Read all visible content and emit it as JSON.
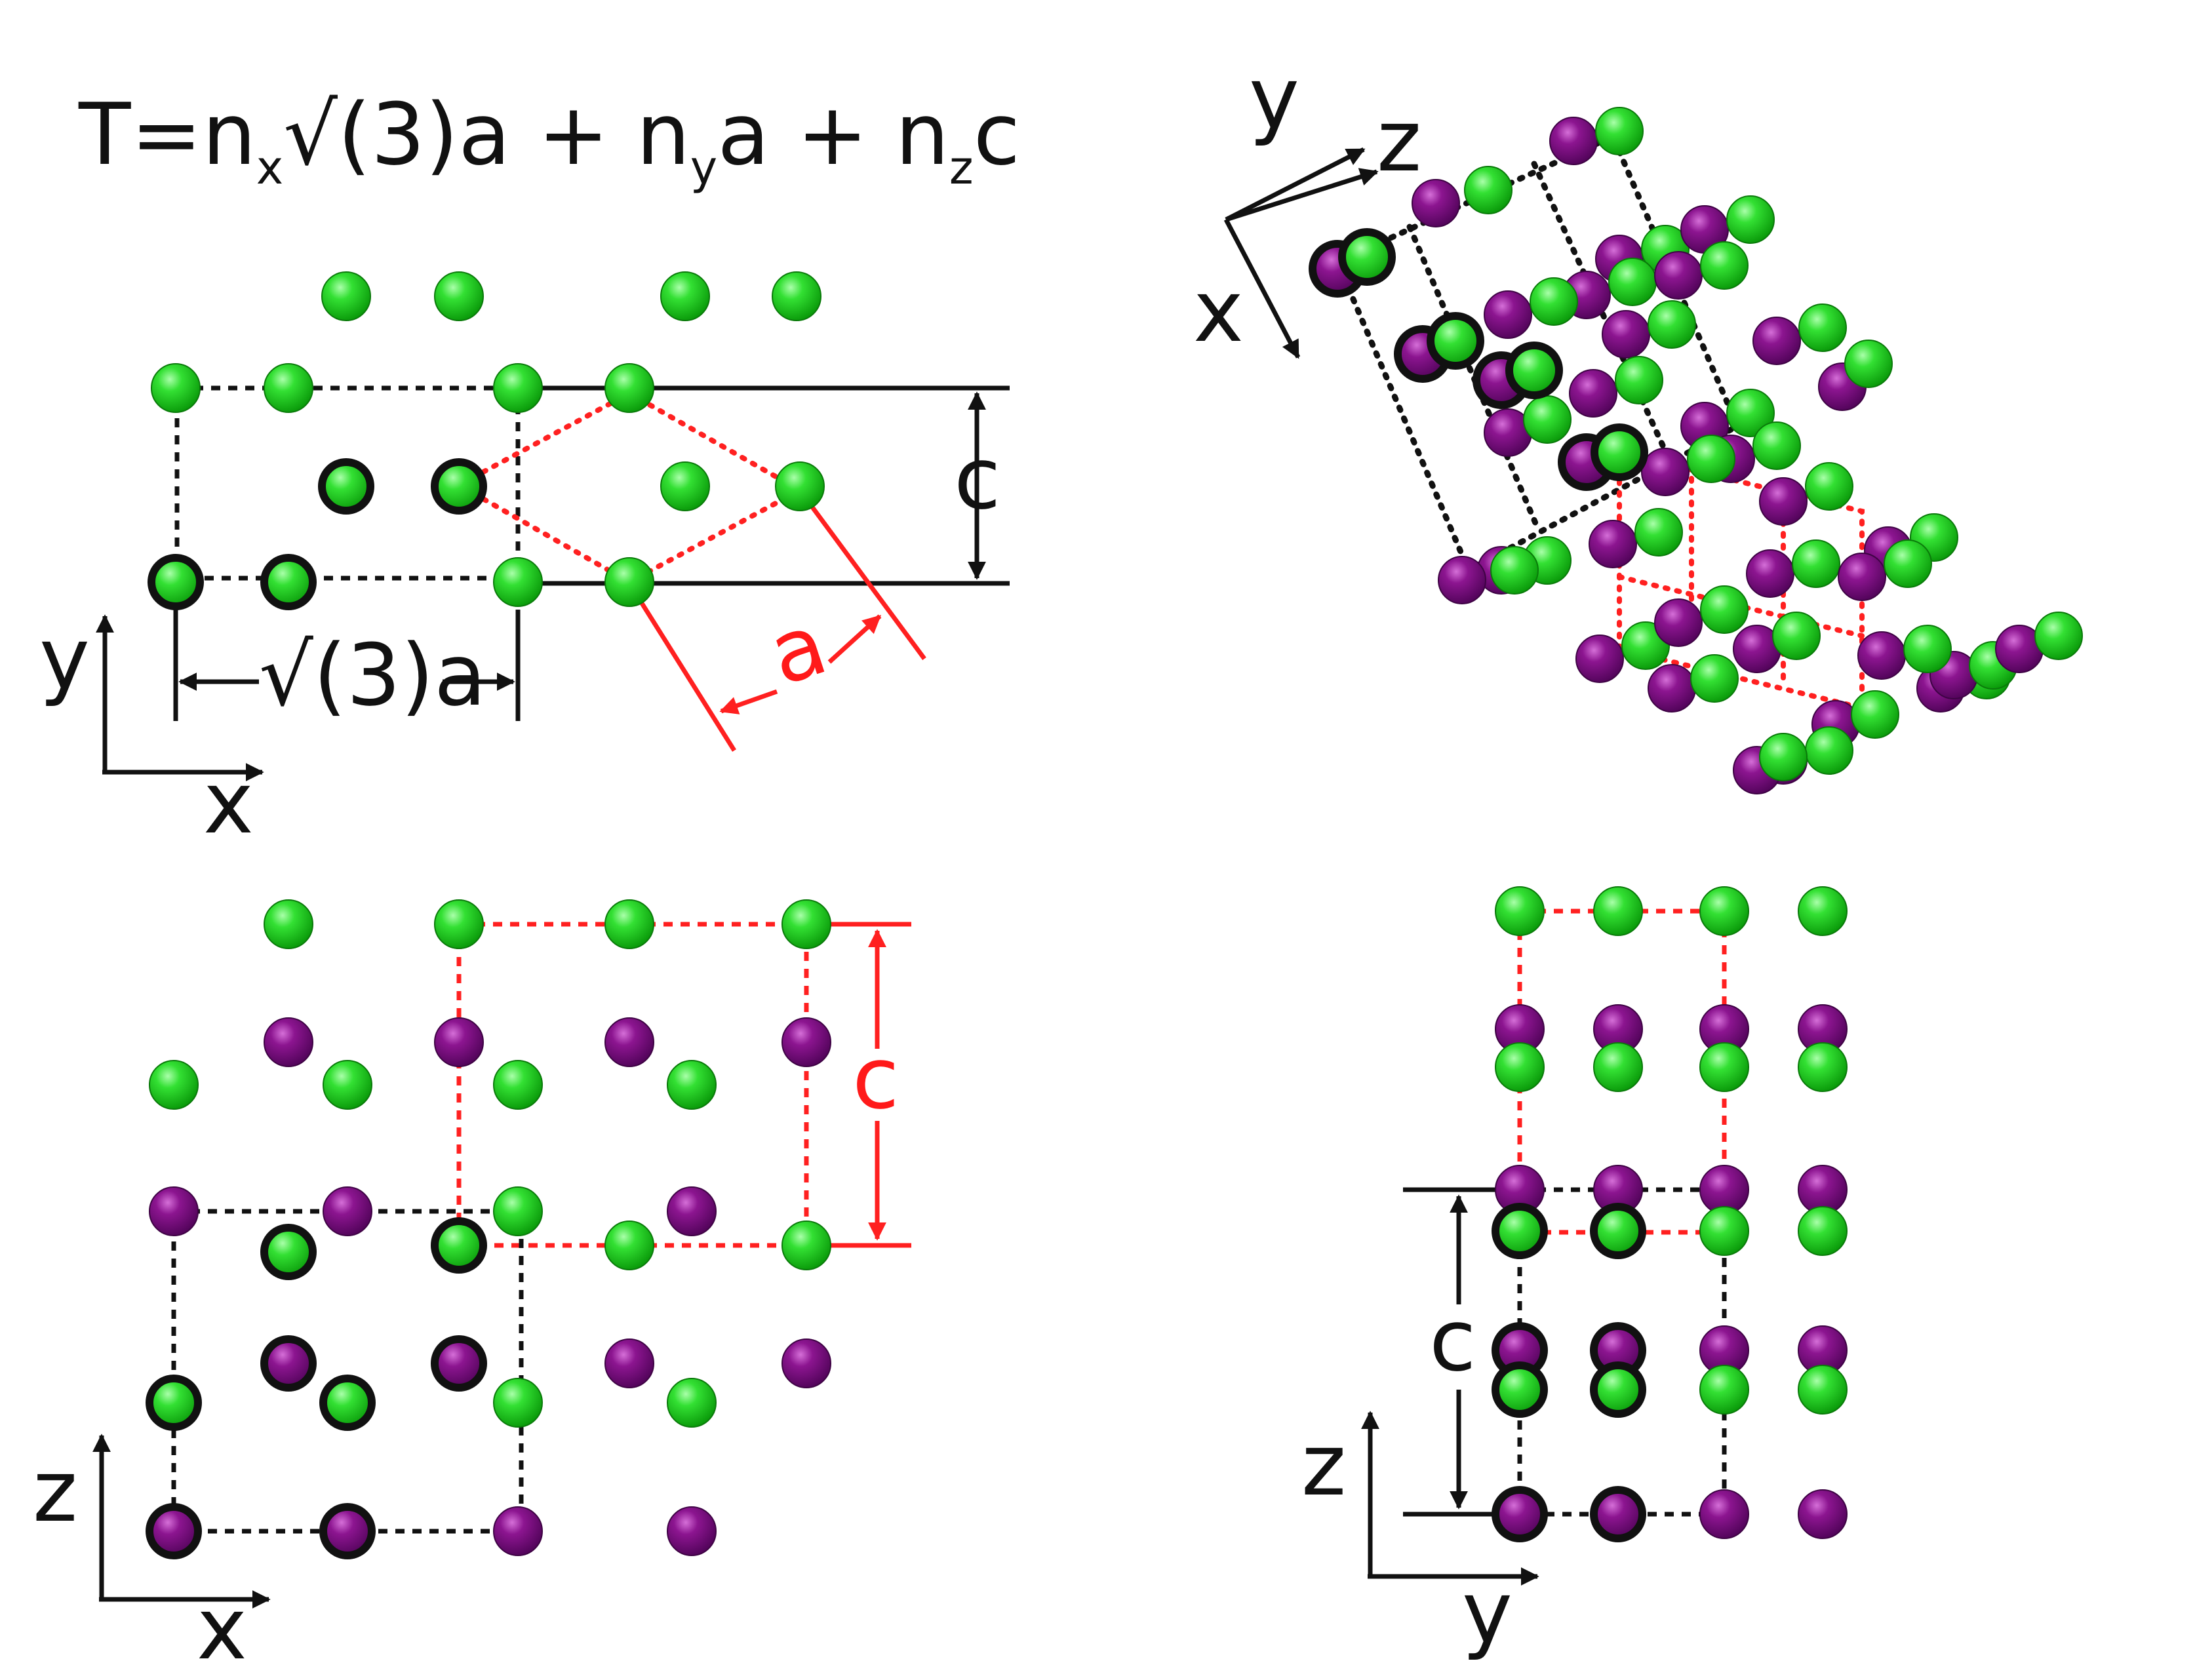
{
  "formula": {
    "T": "T=n",
    "x_sub": "x",
    "part2": "√(3)a + n",
    "y_sub": "y",
    "part3": "a + n",
    "z_sub": "z",
    "part4": "c"
  },
  "panel_xy": {
    "axis_x": "x",
    "axis_y": "y",
    "label_c": "c",
    "label_sqrt3a": "√(3)a",
    "label_a": "a"
  },
  "panel_3d": {
    "axis_x": "x",
    "axis_y": "y",
    "axis_z": "z"
  },
  "panel_xz": {
    "axis_x": "x",
    "axis_z": "z",
    "label_c": "c"
  },
  "panel_yz": {
    "axis_y": "y",
    "axis_z": "z",
    "label_c": "c"
  },
  "colors": {
    "green_atom": "#1fd11f",
    "purple_atom": "#8a108e",
    "highlight_ring": "#111111",
    "red_cell": "#ff2020"
  }
}
